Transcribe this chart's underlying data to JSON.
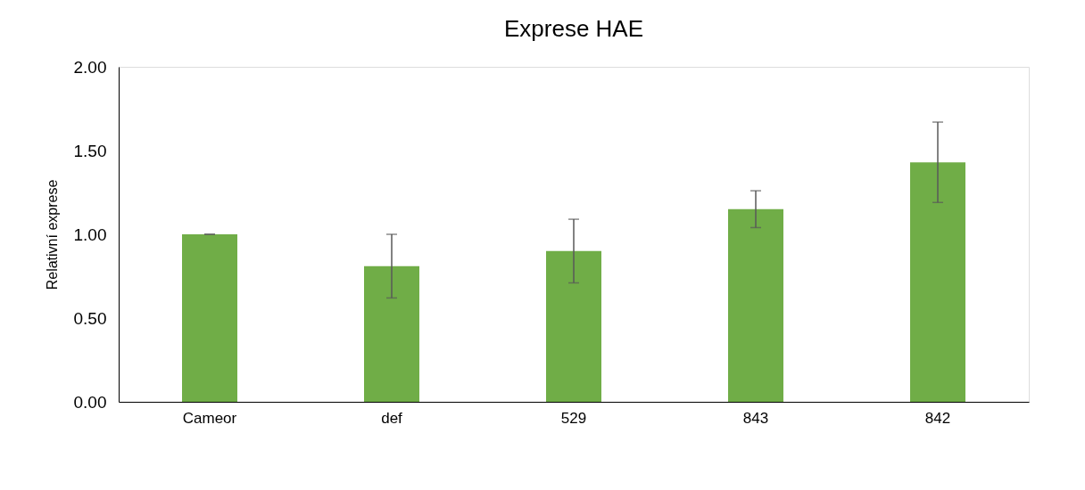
{
  "chart_data": {
    "type": "bar",
    "title": "Exprese HAE",
    "ylabel": "Relativní exprese",
    "categories": [
      "Cameor",
      "def",
      "529",
      "843",
      "842"
    ],
    "values": [
      1.0,
      0.81,
      0.9,
      1.15,
      1.43
    ],
    "errors": [
      0.0,
      0.19,
      0.19,
      0.11,
      0.24
    ],
    "color": "#70ad47",
    "ylim": [
      0,
      2
    ],
    "yticks": [
      {
        "value": 0,
        "label": "0.00"
      },
      {
        "value": 0.5,
        "label": "0.50"
      },
      {
        "value": 1,
        "label": "1.00"
      },
      {
        "value": 1.5,
        "label": "1.50"
      },
      {
        "value": 2,
        "label": "2.00"
      }
    ],
    "grid": false
  }
}
